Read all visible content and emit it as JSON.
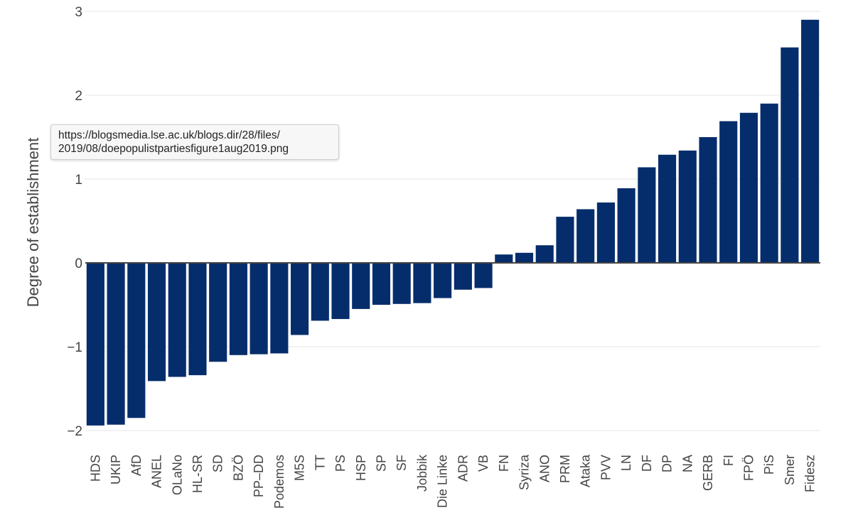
{
  "chart_data": {
    "type": "bar",
    "title": "",
    "xlabel": "",
    "ylabel": "Degree of establishment",
    "ylim": [
      -2.1,
      3.1
    ],
    "yticks": [
      3,
      2,
      1,
      0,
      -1,
      -2
    ],
    "ytick_labels": [
      "3",
      "2",
      "1",
      "0",
      "−1",
      "−2"
    ],
    "categories": [
      "HDS",
      "UKIP",
      "AfD",
      "ANEL",
      "OLaNo",
      "HL-SR",
      "SD",
      "BZÖ",
      "PP–DD",
      "Podemos",
      "M5S",
      "TT",
      "PS",
      "HSP",
      "SP",
      "SF",
      "Jobbik",
      "Die Linke",
      "ADR",
      "VB",
      "FN",
      "Syriza",
      "ANO",
      "PRM",
      "Ataka",
      "PVV",
      "LN",
      "DF",
      "DP",
      "NA",
      "GERB",
      "FI",
      "FPÖ",
      "PiS",
      "Smer",
      "Fidesz"
    ],
    "values": [
      -1.94,
      -1.93,
      -1.85,
      -1.41,
      -1.36,
      -1.34,
      -1.18,
      -1.1,
      -1.09,
      -1.08,
      -0.86,
      -0.69,
      -0.67,
      -0.55,
      -0.5,
      -0.49,
      -0.48,
      -0.42,
      -0.32,
      -0.3,
      0.1,
      0.12,
      0.21,
      0.55,
      0.64,
      0.72,
      0.89,
      1.14,
      1.29,
      1.34,
      1.5,
      1.69,
      1.79,
      1.9,
      2.57,
      2.9
    ],
    "bar_color": "#062d6b",
    "grid": true,
    "legend": "none"
  },
  "tooltip": {
    "line1": "https://blogsmedia.lse.ac.uk/blogs.dir/28/files/",
    "line2": "2019/08/doepopulistpartiesfigure1aug2019.png"
  }
}
